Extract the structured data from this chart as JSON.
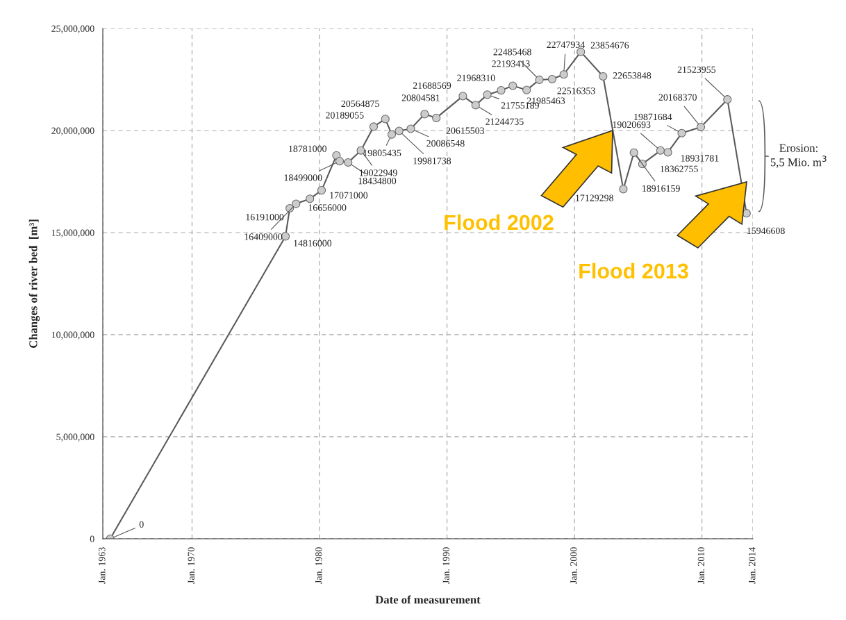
{
  "chart_data": {
    "type": "line",
    "xlabel": "Date of measurement",
    "ylabel": "Changes of river bed  [m³]",
    "x": [
      "1963-08",
      "1977-05",
      "1977-09",
      "1978-03",
      "1979-04",
      "1980-03",
      "1981-05",
      "1981-08",
      "1982-04",
      "1983-04",
      "1984-04",
      "1985-03",
      "1985-09",
      "1986-04",
      "1987-03",
      "1988-04",
      "1989-03",
      "1991-04",
      "1992-04",
      "1993-03",
      "1994-04",
      "1995-03",
      "1996-04",
      "1997-04",
      "1998-04",
      "1999-03",
      "2000-07",
      "2002-04",
      "2003-11",
      "2004-09",
      "2005-05",
      "2006-10",
      "2007-05",
      "2008-06",
      "2009-12",
      "2012-01",
      "2013-07"
    ],
    "series": [
      {
        "color": "#5a5a5a",
        "values": [
          0,
          14816000,
          16191000,
          16409000,
          16656000,
          17071000,
          18781000,
          18499000,
          18434800,
          19022949,
          20189055,
          20564875,
          19805435,
          19981738,
          20086548,
          20804581,
          20615503,
          21688569,
          21244735,
          21755189,
          21968310,
          22193413,
          21985463,
          22485468,
          22516353,
          22747934,
          23854676,
          22653848,
          17129298,
          18916159,
          18362755,
          19020693,
          18931781,
          19871684,
          20168370,
          21523955,
          15946608
        ]
      }
    ],
    "data_labels": true,
    "marker": "circle",
    "line_style": "solid",
    "grid": true,
    "legend": false,
    "xlim": [
      "1963-01",
      "2014-01"
    ],
    "xticks": [
      {
        "value": "1963-01",
        "label": "Jan. 1963"
      },
      {
        "value": "1970-01",
        "label": "Jan. 1970"
      },
      {
        "value": "1980-01",
        "label": "Jan. 1980"
      },
      {
        "value": "1990-01",
        "label": "Jan. 1990"
      },
      {
        "value": "2000-01",
        "label": "Jan. 2000"
      },
      {
        "value": "2010-01",
        "label": "Jan. 2010"
      },
      {
        "value": "2014-01",
        "label": "Jan. 2014"
      }
    ],
    "ylim": [
      0,
      25000000
    ],
    "yticks": [
      0,
      {
        "value": 5000000,
        "label": "5,000,000"
      },
      {
        "value": 10000000,
        "label": "10,000,000"
      },
      {
        "value": 15000000,
        "label": "15,000,000"
      },
      {
        "value": 20000000,
        "label": "20,000,000"
      },
      {
        "value": 25000000,
        "label": "25,000,000"
      }
    ],
    "annotations": [
      "Flood 2002",
      "Flood 2013",
      "Erosion:\n5,5 Mio. m$^{3}$"
    ]
  }
}
